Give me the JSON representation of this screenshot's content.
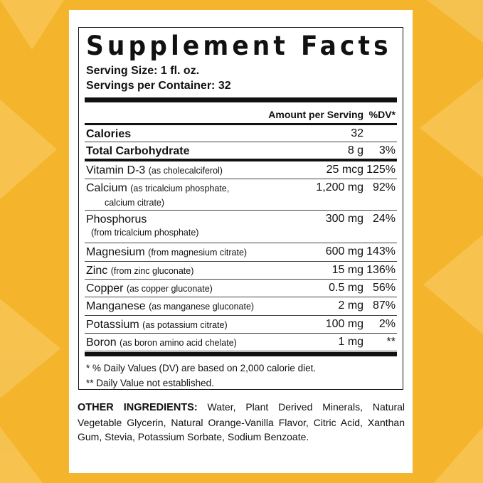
{
  "label": {
    "title": "Supplement Facts",
    "serving_size": "Serving Size: 1 fl. oz.",
    "servings_per_container": "Servings per Container: 32",
    "header": {
      "amount": "Amount per Serving",
      "dv": "%DV*"
    },
    "rows": [
      {
        "name": "Calories",
        "amount": "32"
      },
      {
        "name": "Total Carbohydrate",
        "amount": "8 g",
        "dv": "3%"
      },
      {
        "name": "Vitamin D-3",
        "note": "(as cholecalciferol)",
        "amount": "25 mcg",
        "dv": "125%"
      },
      {
        "name": "Calcium",
        "note": "(as tricalcium phosphate, calcium citrate)",
        "amount": "1,200 mg",
        "dv": "92%"
      },
      {
        "name": "Phosphorus",
        "note": "(from tricalcium phosphate)",
        "amount": "300 mg",
        "dv": "24%"
      },
      {
        "name": "Magnesium",
        "note": "(from magnesium citrate)",
        "amount": "600 mg",
        "dv": "143%"
      },
      {
        "name": "Zinc",
        "note": "(from zinc gluconate)",
        "amount": "15 mg",
        "dv": "136%"
      },
      {
        "name": "Copper",
        "note": "(as copper gluconate)",
        "amount": "0.5 mg",
        "dv": "56%"
      },
      {
        "name": "Manganese",
        "note": "(as manganese gluconate)",
        "amount": "2 mg",
        "dv": "87%"
      },
      {
        "name": "Potassium",
        "note": "(as potassium citrate)",
        "amount": "100 mg",
        "dv": "2%"
      },
      {
        "name": "Boron",
        "note": "(as boron amino acid chelate)",
        "amount": "1 mg",
        "dv": "**"
      }
    ],
    "footnotes": [
      "* % Daily Values (DV) are based on 2,000 calorie diet.",
      "** Daily Value not established."
    ]
  },
  "other_ingredients": {
    "heading": "OTHER INGREDIENTS:",
    "text": "Water, Plant Derived Minerals, Natural Vegetable Glycerin, Natural Orange-Vanilla Flavor, Citric Acid, Xanthan Gum, Stevia, Potassium Sorbate, Sodium Benzoate."
  }
}
